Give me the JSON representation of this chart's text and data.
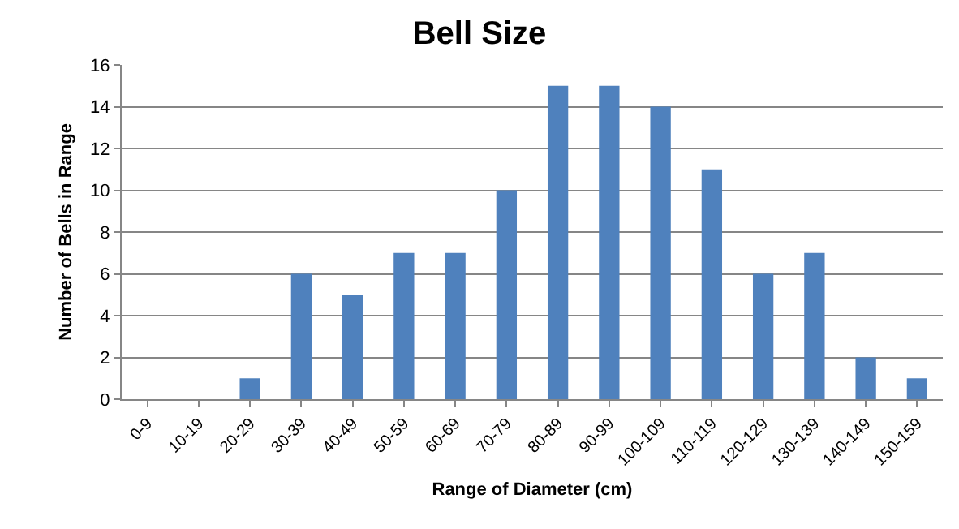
{
  "chart_data": {
    "type": "bar",
    "title": "Bell Size",
    "xlabel": "Range of Diameter (cm)",
    "ylabel": "Number of Bells in Range",
    "categories": [
      "0-9",
      "10-19",
      "20-29",
      "30-39",
      "40-49",
      "50-59",
      "60-69",
      "70-79",
      "80-89",
      "90-99",
      "100-109",
      "110-119",
      "120-129",
      "130-139",
      "140-149",
      "150-159"
    ],
    "values": [
      0,
      0,
      1,
      6,
      5,
      7,
      7,
      10,
      15,
      15,
      14,
      11,
      6,
      7,
      2,
      1
    ],
    "color": "#4f81bd",
    "ylim": [
      0,
      16
    ],
    "yticks": [
      0,
      2,
      4,
      6,
      8,
      10,
      12,
      14,
      16
    ],
    "grid": "y"
  }
}
